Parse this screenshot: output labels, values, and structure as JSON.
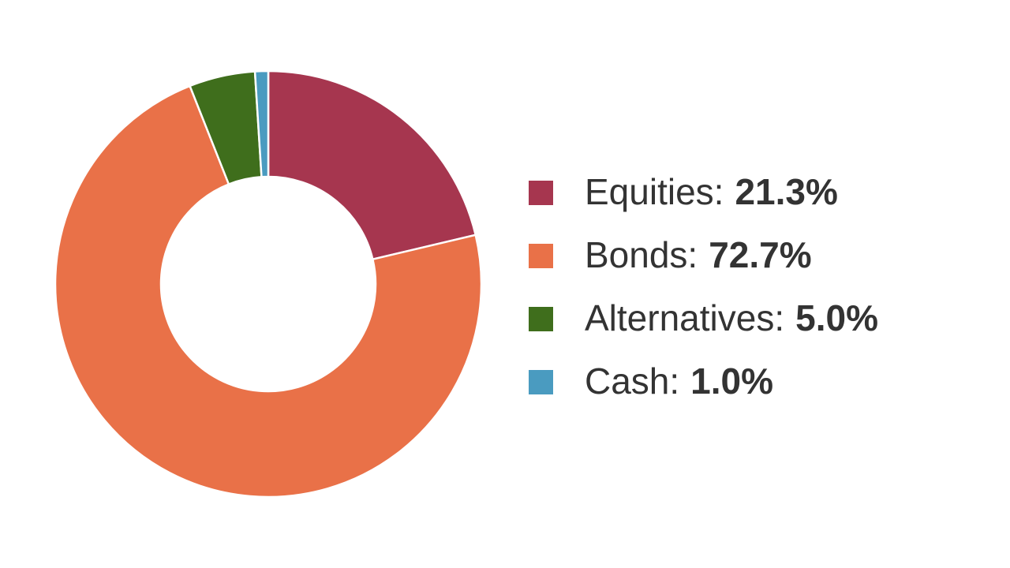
{
  "chart_data": {
    "type": "donut",
    "categories": [
      "Equities:",
      "Bonds:",
      "Alternatives:",
      "Cash:"
    ],
    "values": [
      21.3,
      72.7,
      5.0,
      1.0
    ],
    "value_labels": [
      "21.3%",
      "72.7%",
      "5.0%",
      "1.0%"
    ],
    "colors": [
      "#a6364f",
      "#e97148",
      "#3f6e1c",
      "#4a9bc0"
    ],
    "legend": "right"
  }
}
